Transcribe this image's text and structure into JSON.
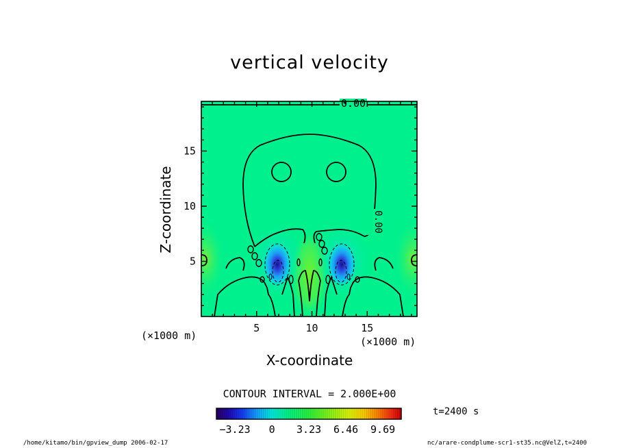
{
  "chart_data": {
    "type": "heatmap",
    "title": "vertical velocity",
    "xlabel": "X-coordinate",
    "ylabel": "Z-coordinate",
    "x_unit": "(×1000 m)",
    "z_unit": "(×1000 m)",
    "xlim": [
      0,
      19.5
    ],
    "ylim": [
      0,
      19.5
    ],
    "x_ticks": [
      5,
      10,
      15
    ],
    "y_ticks": [
      5,
      10,
      15
    ],
    "contour_labels": [
      "0.00",
      "0.00"
    ],
    "contour_interval_text": "CONTOUR INTERVAL = 2.000E+00",
    "colorbar": {
      "ticks": [
        -3.23,
        0,
        3.23,
        6.46,
        9.69
      ],
      "tick_labels": [
        "−3.23",
        "0",
        "3.23",
        "6.46",
        "9.69"
      ],
      "range": [
        -4.85,
        11.3
      ]
    },
    "features": [
      {
        "name": "left downdraft core",
        "x": 7.0,
        "z": 4.2,
        "value": -4.5
      },
      {
        "name": "right downdraft core",
        "x": 13.0,
        "z": 4.2,
        "value": -4.5
      },
      {
        "name": "central updraft",
        "x": 10.0,
        "z": 4.0,
        "value": 1.2
      }
    ],
    "grid": false
  },
  "annotations": {
    "time": "t=2400 s",
    "footer_left": "/home/kitamo/bin/gpview_dump  2006-02-17",
    "footer_right": "nc/arare-condplume-scr1-st35.nc@VelZ,t=2400"
  },
  "colors": {
    "background_field": "#00f08c",
    "contour_line": "#000000",
    "downdraft": "#101080"
  }
}
